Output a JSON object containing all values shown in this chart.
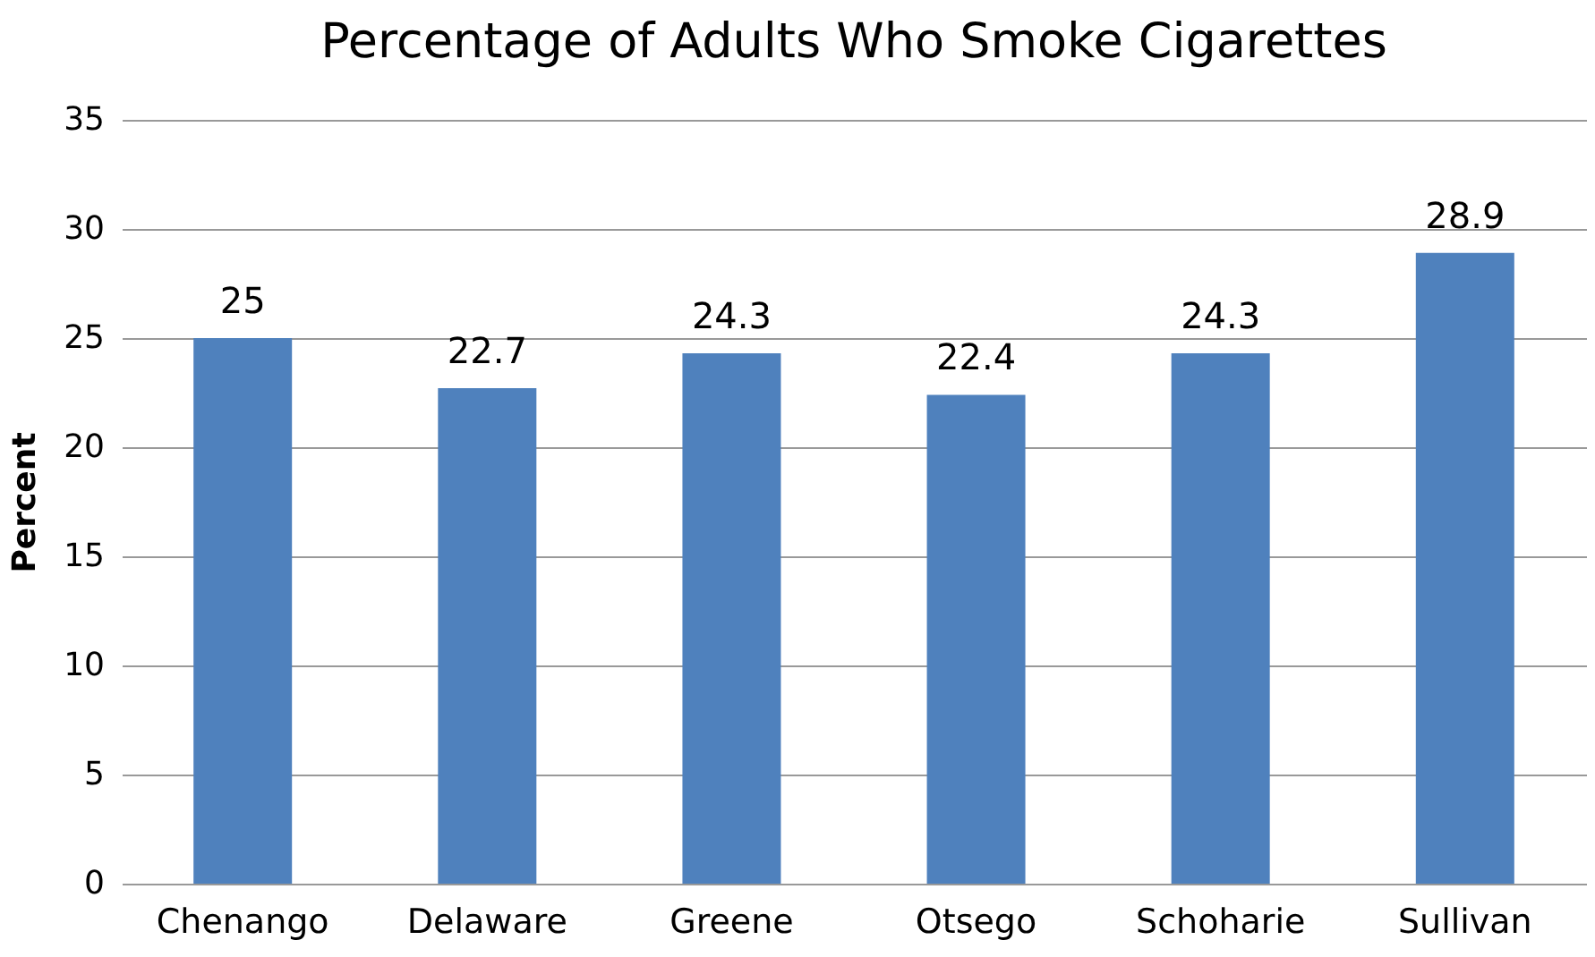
{
  "chart_data": {
    "type": "bar",
    "title": "Percentage of Adults Who Smoke Cigarettes",
    "ylabel": "Percent",
    "categories": [
      "Chenango",
      "Delaware",
      "Greene",
      "Otsego",
      "Schoharie",
      "Sullivan"
    ],
    "values": [
      25,
      22.7,
      24.3,
      22.4,
      24.3,
      28.9
    ],
    "color": "#4f81bd",
    "ylim": [
      0,
      35
    ],
    "yticks": [
      0,
      5,
      10,
      15,
      20,
      25,
      30,
      35
    ],
    "grid": "y",
    "data_labels": true
  }
}
